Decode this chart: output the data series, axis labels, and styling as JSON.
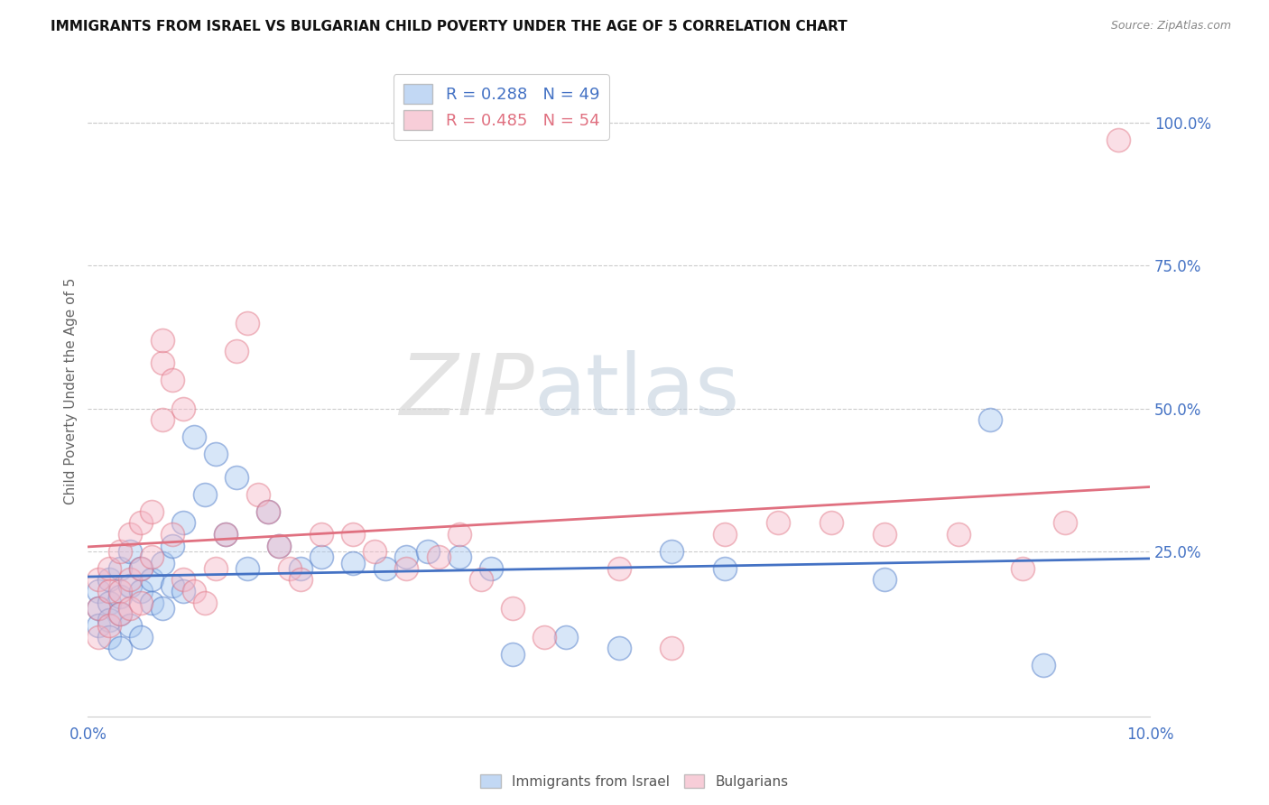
{
  "title": "IMMIGRANTS FROM ISRAEL VS BULGARIAN CHILD POVERTY UNDER THE AGE OF 5 CORRELATION CHART",
  "source": "Source: ZipAtlas.com",
  "ylabel": "Child Poverty Under the Age of 5",
  "ytick_labels": [
    "100.0%",
    "75.0%",
    "50.0%",
    "25.0%"
  ],
  "ytick_values": [
    1.0,
    0.75,
    0.5,
    0.25
  ],
  "xlim": [
    0.0,
    0.1
  ],
  "ylim": [
    -0.04,
    1.1
  ],
  "blue_R": 0.288,
  "blue_N": 49,
  "pink_R": 0.485,
  "pink_N": 54,
  "blue_color": "#a8c8f0",
  "pink_color": "#f5b8c8",
  "blue_line_color": "#4472c4",
  "pink_line_color": "#e07080",
  "watermark_zip": "ZIP",
  "watermark_atlas": "atlas",
  "blue_scatter_x": [
    0.001,
    0.001,
    0.001,
    0.002,
    0.002,
    0.002,
    0.002,
    0.003,
    0.003,
    0.003,
    0.003,
    0.004,
    0.004,
    0.004,
    0.005,
    0.005,
    0.005,
    0.006,
    0.006,
    0.007,
    0.007,
    0.008,
    0.008,
    0.009,
    0.009,
    0.01,
    0.011,
    0.012,
    0.013,
    0.014,
    0.015,
    0.017,
    0.018,
    0.02,
    0.022,
    0.025,
    0.028,
    0.03,
    0.032,
    0.035,
    0.038,
    0.04,
    0.045,
    0.05,
    0.055,
    0.06,
    0.075,
    0.085,
    0.09
  ],
  "blue_scatter_y": [
    0.18,
    0.15,
    0.12,
    0.2,
    0.16,
    0.13,
    0.1,
    0.22,
    0.17,
    0.14,
    0.08,
    0.25,
    0.19,
    0.12,
    0.22,
    0.18,
    0.1,
    0.2,
    0.16,
    0.23,
    0.15,
    0.26,
    0.19,
    0.3,
    0.18,
    0.45,
    0.35,
    0.42,
    0.28,
    0.38,
    0.22,
    0.32,
    0.26,
    0.22,
    0.24,
    0.23,
    0.22,
    0.24,
    0.25,
    0.24,
    0.22,
    0.07,
    0.1,
    0.08,
    0.25,
    0.22,
    0.2,
    0.48,
    0.05
  ],
  "pink_scatter_x": [
    0.001,
    0.001,
    0.001,
    0.002,
    0.002,
    0.002,
    0.003,
    0.003,
    0.003,
    0.004,
    0.004,
    0.004,
    0.005,
    0.005,
    0.005,
    0.006,
    0.006,
    0.007,
    0.007,
    0.007,
    0.008,
    0.008,
    0.009,
    0.009,
    0.01,
    0.011,
    0.012,
    0.013,
    0.014,
    0.015,
    0.016,
    0.017,
    0.018,
    0.019,
    0.02,
    0.022,
    0.025,
    0.027,
    0.03,
    0.033,
    0.035,
    0.037,
    0.04,
    0.043,
    0.05,
    0.055,
    0.06,
    0.065,
    0.07,
    0.075,
    0.082,
    0.088,
    0.092,
    0.097
  ],
  "pink_scatter_y": [
    0.2,
    0.15,
    0.1,
    0.22,
    0.18,
    0.12,
    0.25,
    0.18,
    0.14,
    0.28,
    0.2,
    0.15,
    0.3,
    0.22,
    0.16,
    0.32,
    0.24,
    0.48,
    0.58,
    0.62,
    0.55,
    0.28,
    0.5,
    0.2,
    0.18,
    0.16,
    0.22,
    0.28,
    0.6,
    0.65,
    0.35,
    0.32,
    0.26,
    0.22,
    0.2,
    0.28,
    0.28,
    0.25,
    0.22,
    0.24,
    0.28,
    0.2,
    0.15,
    0.1,
    0.22,
    0.08,
    0.28,
    0.3,
    0.3,
    0.28,
    0.28,
    0.22,
    0.3,
    0.97
  ]
}
